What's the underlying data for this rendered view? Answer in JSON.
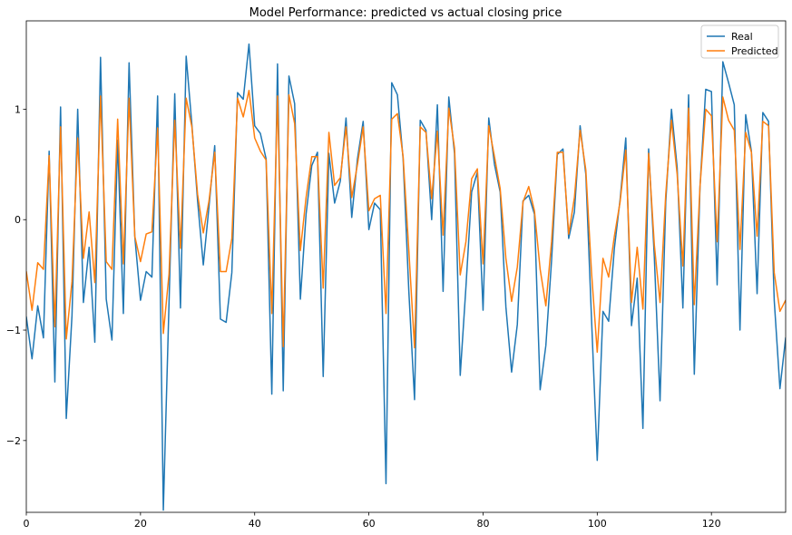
{
  "chart_data": {
    "type": "line",
    "title": "Model Performance: predicted vs actual closing price",
    "xlabel": "",
    "ylabel": "",
    "xlim": [
      0,
      133
    ],
    "ylim": [
      -2.65,
      1.8
    ],
    "xticks": [
      0,
      20,
      40,
      60,
      80,
      100,
      120
    ],
    "yticks": [
      -2,
      -1,
      0,
      1
    ],
    "xtick_labels": [
      "0",
      "20",
      "40",
      "60",
      "80",
      "100",
      "120"
    ],
    "ytick_labels": [
      "−2",
      "−1",
      "0",
      "1"
    ],
    "grid": false,
    "legend_position": "top-right",
    "series": [
      {
        "name": "Real",
        "color": "#1f77b4",
        "values": [
          -0.88,
          -1.26,
          -0.78,
          -1.07,
          0.62,
          -1.47,
          1.02,
          -1.8,
          -0.87,
          1.0,
          -0.75,
          -0.25,
          -1.11,
          1.47,
          -0.72,
          -1.09,
          0.72,
          -0.85,
          1.42,
          -0.15,
          -0.73,
          -0.47,
          -0.52,
          1.12,
          -2.63,
          -0.75,
          1.14,
          -0.8,
          1.48,
          0.86,
          0.17,
          -0.41,
          0.12,
          0.67,
          -0.9,
          -0.93,
          -0.48,
          1.15,
          1.09,
          1.59,
          0.85,
          0.78,
          0.55,
          -1.58,
          1.41,
          -1.55,
          1.3,
          1.05,
          -0.72,
          0.05,
          0.49,
          0.61,
          -1.42,
          0.6,
          0.15,
          0.35,
          0.92,
          0.02,
          0.55,
          0.89,
          -0.09,
          0.15,
          0.09,
          -2.39,
          1.24,
          1.13,
          0.55,
          -0.65,
          -1.63,
          0.9,
          0.81,
          0.0,
          1.04,
          -0.65,
          1.11,
          0.6,
          -1.41,
          -0.61,
          0.25,
          0.43,
          -0.82,
          0.92,
          0.5,
          0.25,
          -0.79,
          -1.38,
          -0.95,
          0.17,
          0.22,
          0.05,
          -1.54,
          -1.14,
          -0.37,
          0.59,
          0.64,
          -0.17,
          0.07,
          0.85,
          0.41,
          -0.9,
          -2.18,
          -0.83,
          -0.92,
          -0.26,
          0.18,
          0.74,
          -0.96,
          -0.53,
          -1.89,
          0.64,
          -0.34,
          -1.64,
          0.16,
          1.0,
          0.47,
          -0.8,
          1.13,
          -1.4,
          0.3,
          1.18,
          1.16,
          -0.59,
          1.43,
          1.24,
          1.04,
          -1.0,
          0.95,
          0.62,
          -0.67,
          0.97,
          0.89,
          -0.73,
          -1.53,
          -1.07
        ]
      },
      {
        "name": "Predicted",
        "color": "#ff7f0e",
        "values": [
          -0.47,
          -0.82,
          -0.39,
          -0.45,
          0.58,
          -0.97,
          0.84,
          -1.08,
          -0.56,
          0.74,
          -0.35,
          0.07,
          -0.57,
          1.12,
          -0.38,
          -0.45,
          0.91,
          -0.4,
          1.1,
          -0.15,
          -0.38,
          -0.13,
          -0.11,
          0.83,
          -1.03,
          -0.49,
          0.9,
          -0.26,
          1.1,
          0.84,
          0.23,
          -0.12,
          0.17,
          0.61,
          -0.47,
          -0.47,
          -0.17,
          1.1,
          0.93,
          1.17,
          0.74,
          0.62,
          0.54,
          -0.85,
          1.12,
          -1.15,
          1.13,
          0.87,
          -0.28,
          0.2,
          0.57,
          0.57,
          -0.62,
          0.79,
          0.31,
          0.38,
          0.84,
          0.2,
          0.5,
          0.84,
          0.08,
          0.19,
          0.22,
          -0.85,
          0.91,
          0.96,
          0.57,
          -0.28,
          -1.16,
          0.84,
          0.79,
          0.19,
          0.8,
          -0.14,
          1.01,
          0.65,
          -0.5,
          -0.2,
          0.37,
          0.46,
          -0.4,
          0.85,
          0.57,
          0.28,
          -0.35,
          -0.74,
          -0.43,
          0.16,
          0.3,
          0.08,
          -0.45,
          -0.78,
          -0.2,
          0.61,
          0.61,
          -0.13,
          0.2,
          0.81,
          0.45,
          -0.48,
          -1.2,
          -0.35,
          -0.52,
          -0.15,
          0.16,
          0.63,
          -0.75,
          -0.25,
          -0.81,
          0.6,
          -0.23,
          -0.75,
          0.23,
          0.9,
          0.41,
          -0.42,
          1.01,
          -0.77,
          0.3,
          1.0,
          0.94,
          -0.2,
          1.11,
          0.9,
          0.81,
          -0.27,
          0.79,
          0.61,
          -0.15,
          0.89,
          0.85,
          -0.48,
          -0.83,
          -0.73
        ]
      }
    ]
  }
}
